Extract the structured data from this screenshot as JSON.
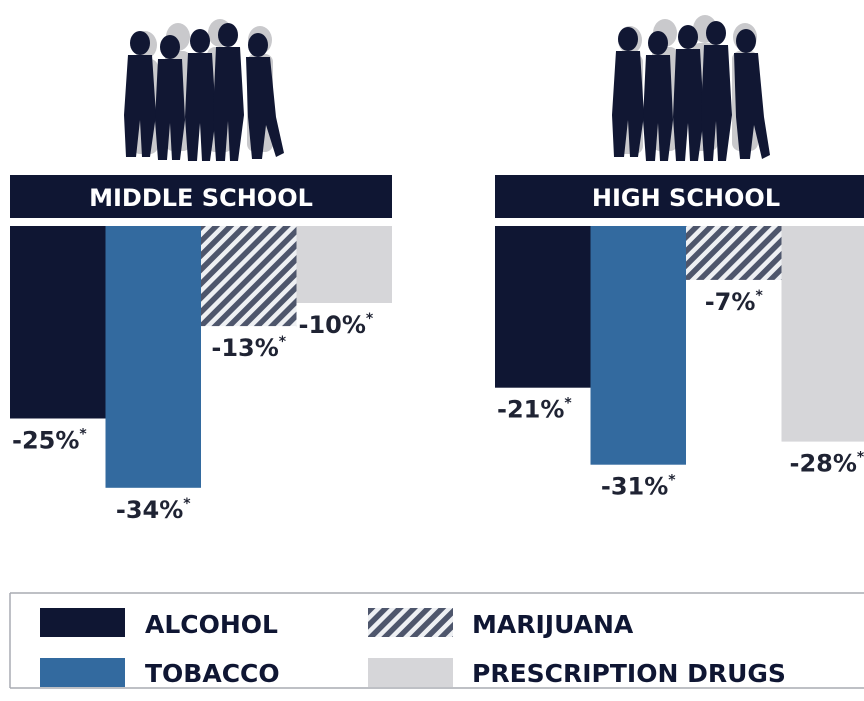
{
  "chart_data": {
    "type": "bar",
    "direction": "downward",
    "panels": [
      {
        "title": "MIDDLE SCHOOL",
        "values": [
          -25,
          -34,
          -13,
          -10
        ],
        "labels": [
          "-25%",
          "-34%",
          "-13%",
          "-10%"
        ],
        "marker": "*"
      },
      {
        "title": "HIGH SCHOOL",
        "values": [
          -21,
          -31,
          -7,
          -28
        ],
        "labels": [
          "-21%",
          "-31%",
          "-7%",
          "-28%"
        ],
        "marker": "*"
      }
    ],
    "series": [
      {
        "name": "ALCOHOL",
        "color": "#0f1633",
        "pattern": "solid"
      },
      {
        "name": "TOBACCO",
        "color": "#336a9f",
        "pattern": "solid"
      },
      {
        "name": "MARIJUANA",
        "color": "#4e566c",
        "pattern": "diagonal-stripes"
      },
      {
        "name": "PRESCRIPTION DRUGS",
        "color": "#d6d6d9",
        "pattern": "solid"
      }
    ],
    "legend": {
      "position": "bottom",
      "items": [
        "ALCOHOL",
        "MARIJUANA",
        "TOBACCO",
        "PRESCRIPTION DRUGS"
      ]
    },
    "illustration": "student-group-silhouette",
    "grid": false
  }
}
